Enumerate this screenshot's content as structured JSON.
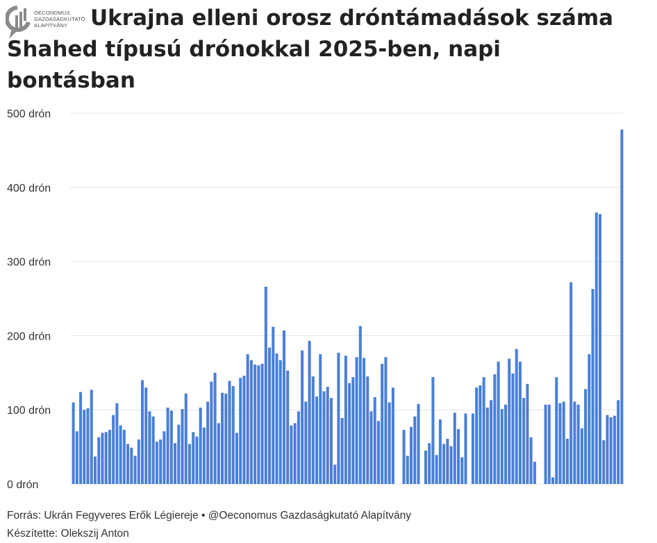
{
  "logo": {
    "lines": [
      "Oeconomus",
      "Gazdaságkutató",
      "Alapítvány"
    ]
  },
  "title": "Ukrajna elleni orosz dróntámadások száma Shahed típusú drónokkal 2025-ben, napi bontásban",
  "footer": {
    "source": "Forrás: Ukrán Fegyveres Erők Légiereje • @Oeconomus Gazdaságkutató Alapítvány",
    "author": "Készítette: Olekszij Anton"
  },
  "colors": {
    "bar": "#4a7fd8",
    "grid": "#e3e3e3",
    "axis_text": "#333333"
  },
  "chart_data": {
    "type": "bar",
    "title": "Ukrajna elleni orosz dróntámadások száma Shahed típusú drónokkal 2025-ben, napi bontásban",
    "ylim": [
      0,
      500
    ],
    "yticks": [
      0,
      100,
      200,
      300,
      400,
      500
    ],
    "ytick_labels": [
      "0 drón",
      "100 drón",
      "200 drón",
      "300 drón",
      "400 drón",
      "500 drón"
    ],
    "grid": true,
    "values": [
      110,
      71,
      124,
      100,
      102,
      127,
      37,
      63,
      69,
      70,
      73,
      93,
      109,
      79,
      73,
      54,
      49,
      38,
      60,
      140,
      130,
      98,
      91,
      57,
      60,
      71,
      103,
      99,
      55,
      80,
      101,
      122,
      54,
      70,
      64,
      103,
      76,
      111,
      138,
      150,
      82,
      123,
      122,
      139,
      132,
      69,
      143,
      146,
      175,
      167,
      161,
      160,
      162,
      266,
      184,
      212,
      176,
      167,
      207,
      153,
      79,
      82,
      98,
      180,
      111,
      193,
      145,
      118,
      175,
      125,
      131,
      116,
      26,
      177,
      89,
      173,
      136,
      144,
      171,
      213,
      170,
      145,
      98,
      117,
      85,
      162,
      171,
      110,
      130,
      null,
      null,
      73,
      38,
      77,
      91,
      108,
      null,
      45,
      55,
      144,
      39,
      87,
      54,
      61,
      51,
      96,
      74,
      36,
      95,
      null,
      95,
      130,
      133,
      144,
      103,
      113,
      148,
      165,
      101,
      107,
      169,
      149,
      182,
      165,
      116,
      135,
      63,
      30,
      null,
      null,
      107,
      107,
      9,
      144,
      109,
      111,
      61,
      272,
      111,
      107,
      75,
      128,
      175,
      263,
      366,
      364,
      59,
      93,
      90,
      92,
      113,
      478
    ]
  }
}
